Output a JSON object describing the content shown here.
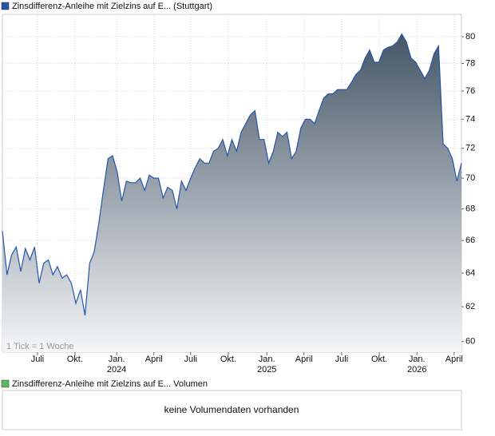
{
  "chart_data": {
    "type": "area",
    "series": [
      {
        "name": "Zinsdifferenz-Anleihe mit Zielzins auf E...",
        "color": "#2456a8",
        "values": [
          66.6,
          63.9,
          65.1,
          65.6,
          64.1,
          65.5,
          64.8,
          65.6,
          63.4,
          64.6,
          64.8,
          63.9,
          64.4,
          63.7,
          63.9,
          63.4,
          62.2,
          63.0,
          61.5,
          64.6,
          65.3,
          67.1,
          69.2,
          71.3,
          71.5,
          70.4,
          68.5,
          69.8,
          69.7,
          69.7,
          70.0,
          69.2,
          70.2,
          70.0,
          70.0,
          68.7,
          69.4,
          69.2,
          68.0,
          69.8,
          69.2,
          70.0,
          70.7,
          71.3,
          71.0,
          71.0,
          71.8,
          72.0,
          72.6,
          71.5,
          72.6,
          71.8,
          73.1,
          73.7,
          74.3,
          74.6,
          72.6,
          72.6,
          71.0,
          71.8,
          73.1,
          72.8,
          73.1,
          71.3,
          71.8,
          73.4,
          74.0,
          74.0,
          73.7,
          74.6,
          75.5,
          75.8,
          75.8,
          76.1,
          76.1,
          76.1,
          76.6,
          77.2,
          77.5,
          78.4,
          79.0,
          78.1,
          78.1,
          79.0,
          79.2,
          79.3,
          79.6,
          80.2,
          79.6,
          78.4,
          78.1,
          77.5,
          76.9,
          77.5,
          78.7,
          79.3,
          72.3,
          72.0,
          71.3,
          69.8,
          71.0
        ]
      }
    ],
    "exchange": "(Stuttgart)",
    "annotation": "1 Tick = 1 Woche",
    "log_scale": true,
    "grid": true,
    "xlim": [
      0,
      100
    ],
    "xticks": [
      {
        "value": 7.65,
        "label": "Juli"
      },
      {
        "value": 15.8,
        "label": "Okt."
      },
      {
        "value": 24.9,
        "label": "Jan."
      },
      {
        "value": 33.0,
        "label": "April"
      },
      {
        "value": 41.0,
        "label": "Juli"
      },
      {
        "value": 49.2,
        "label": "Okt."
      },
      {
        "value": 57.6,
        "label": "Jan."
      },
      {
        "value": 65.7,
        "label": "April"
      },
      {
        "value": 73.9,
        "label": "Juli"
      },
      {
        "value": 82.1,
        "label": "Okt."
      },
      {
        "value": 90.3,
        "label": "Jan."
      },
      {
        "value": 98.4,
        "label": "April"
      }
    ],
    "xtick_years": [
      {
        "value": 24.9,
        "label": "2024"
      },
      {
        "value": 57.6,
        "label": "2025"
      },
      {
        "value": 90.3,
        "label": "2026"
      }
    ],
    "ylim": [
      59.4,
      81.7
    ],
    "yticks": [
      60,
      62,
      64,
      66,
      68,
      70,
      72,
      74,
      76,
      78,
      80
    ]
  },
  "volume_panel": {
    "legend": "Zinsdifferenz-Anleihe mit Zielzins auf E... Volumen",
    "color": "#5cb85c",
    "message": "keine Volumendaten vorhanden"
  }
}
